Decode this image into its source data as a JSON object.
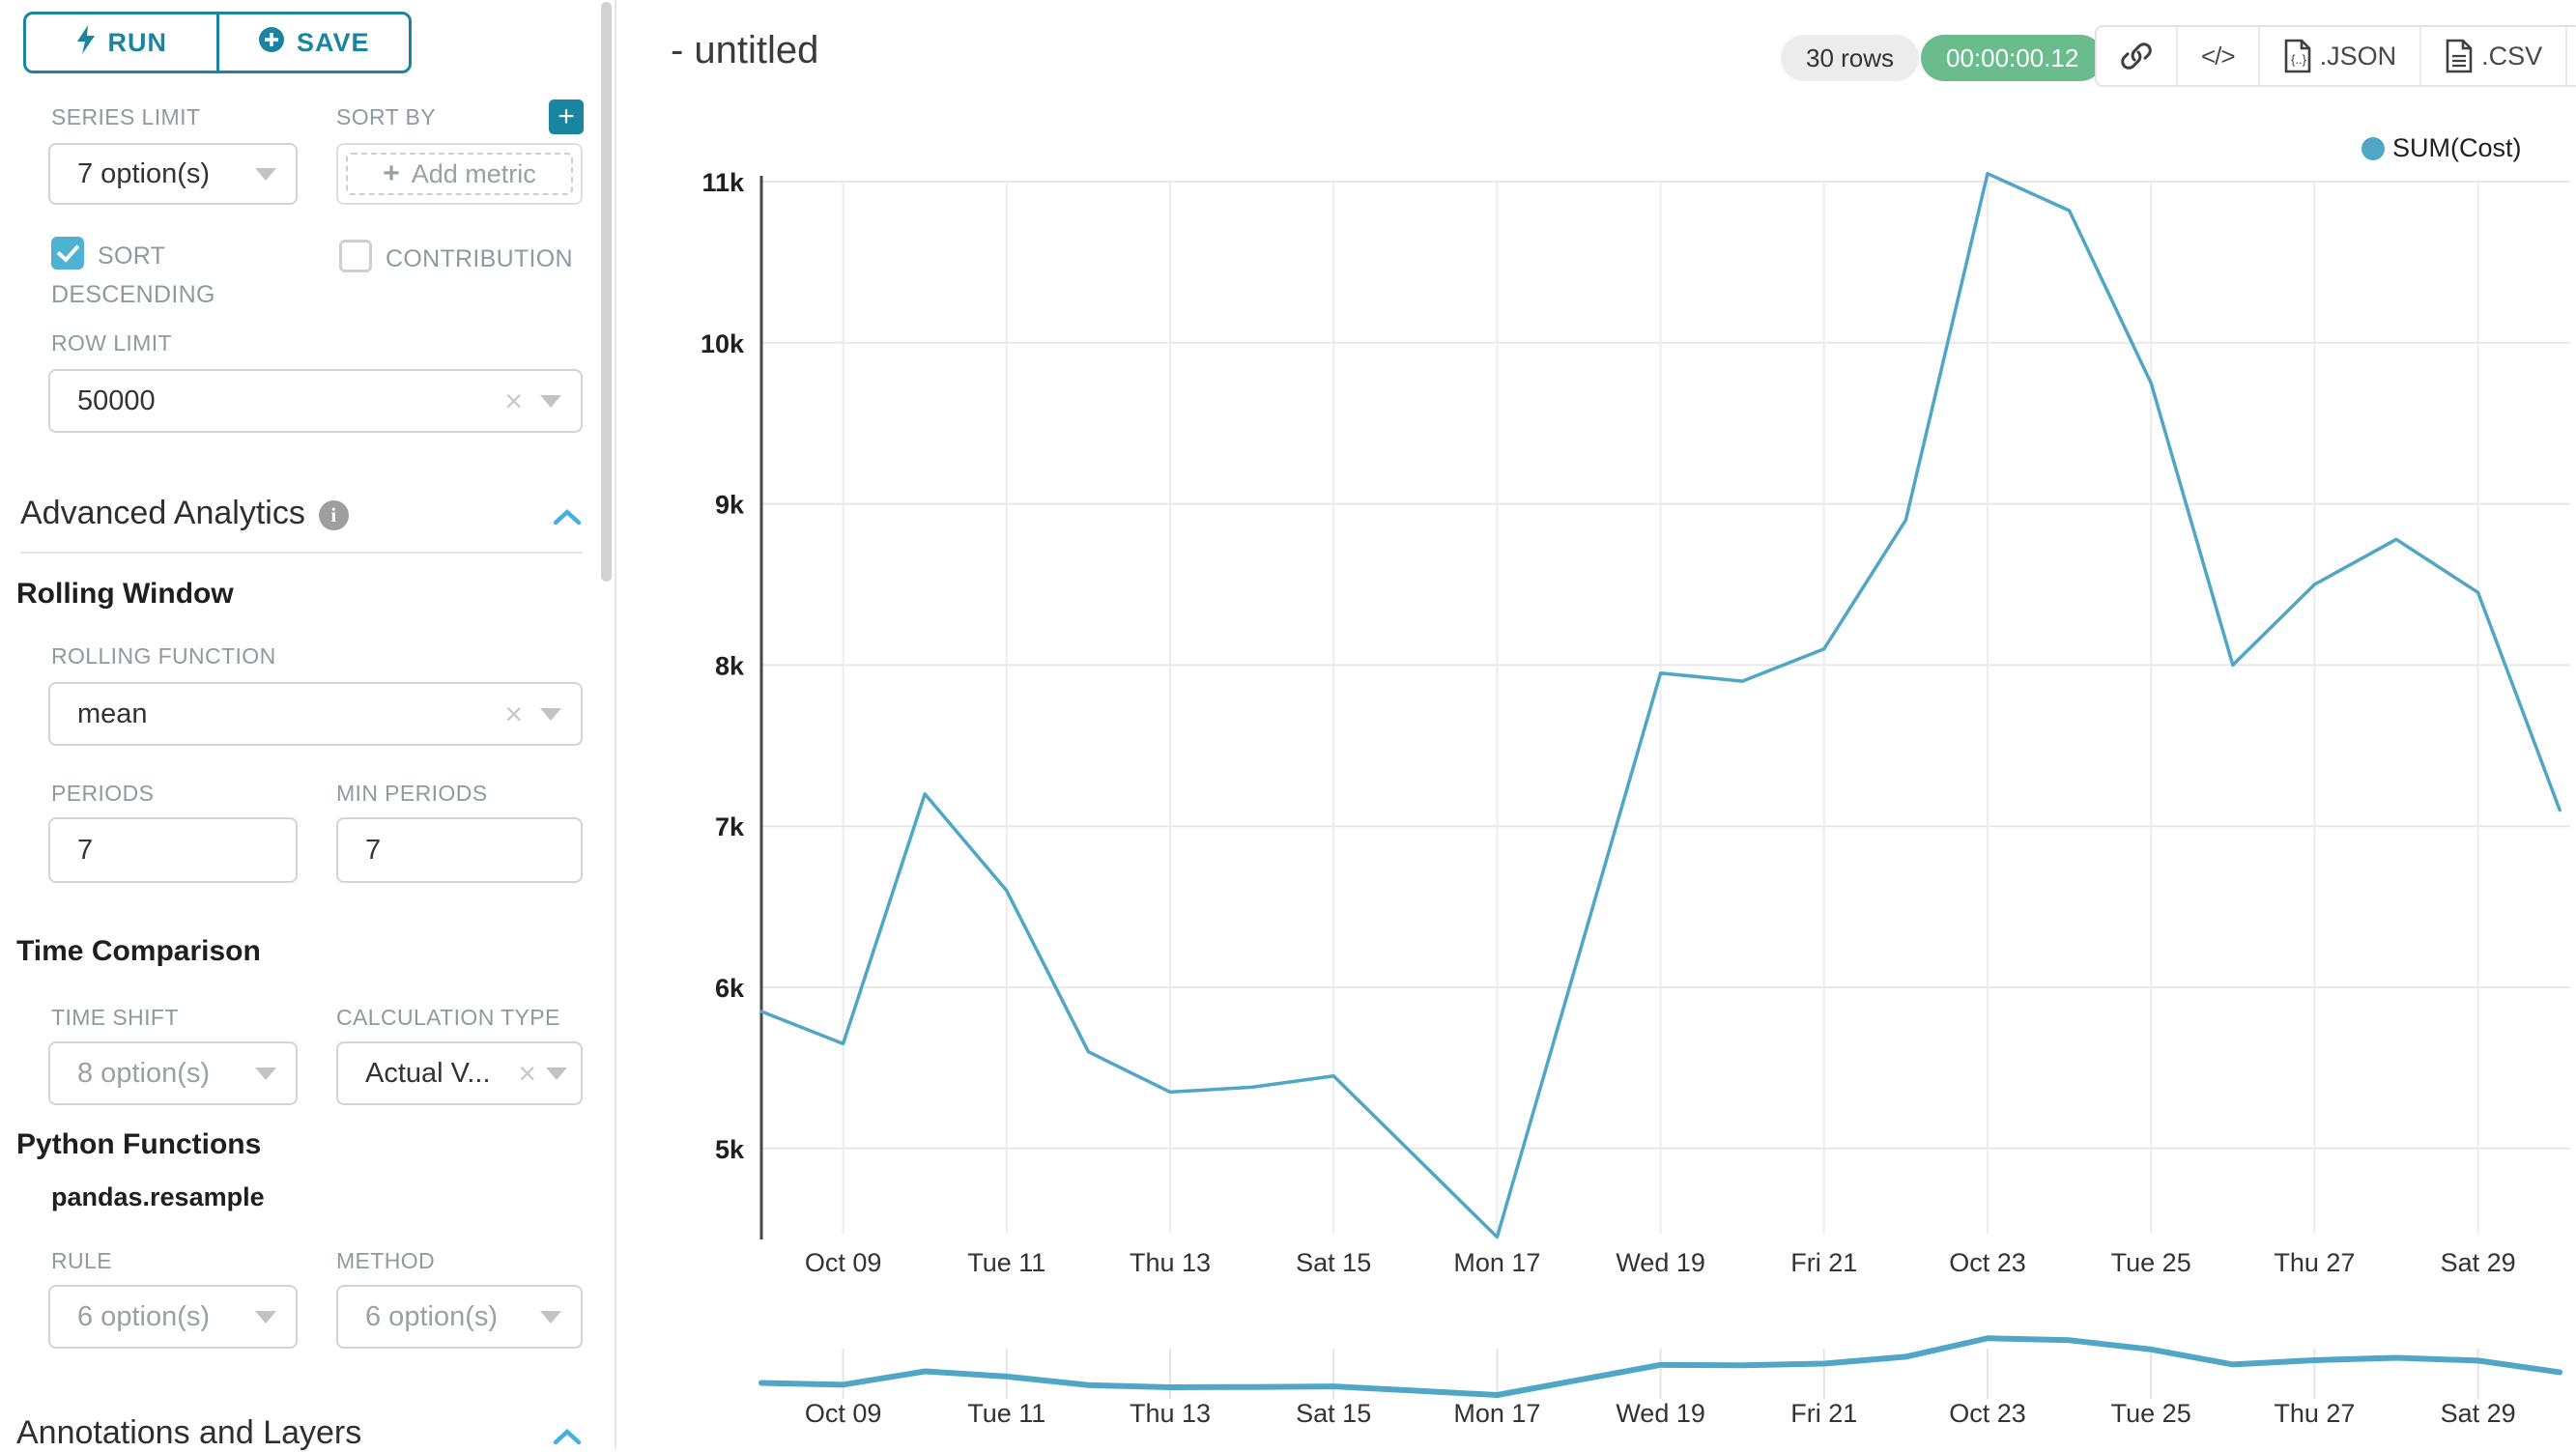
{
  "colors": {
    "accent": "#1a85a0",
    "checkbox": "#4fb2d3",
    "chevron": "#44b0e0",
    "line": "#4fa6c6",
    "green": "#6abc8d"
  },
  "sidebar": {
    "run_label": "RUN",
    "save_label": "SAVE",
    "series_limit": {
      "label": "SERIES LIMIT",
      "value": "7 option(s)"
    },
    "sort_by": {
      "label": "SORT BY",
      "add_metric_label": "Add metric"
    },
    "sort_descending": {
      "label": "SORT DESCENDING",
      "checked": true
    },
    "contribution": {
      "label": "CONTRIBUTION",
      "checked": false
    },
    "row_limit": {
      "label": "ROW LIMIT",
      "value": "50000"
    },
    "advanced_analytics": {
      "title": "Advanced Analytics"
    },
    "rolling_window": {
      "title": "Rolling Window",
      "rolling_function": {
        "label": "ROLLING FUNCTION",
        "value": "mean"
      },
      "periods": {
        "label": "PERIODS",
        "value": "7"
      },
      "min_periods": {
        "label": "MIN PERIODS",
        "value": "7"
      }
    },
    "time_comparison": {
      "title": "Time Comparison",
      "time_shift": {
        "label": "TIME SHIFT",
        "value": "8 option(s)"
      },
      "calculation_type": {
        "label": "CALCULATION TYPE",
        "value": "Actual V..."
      }
    },
    "python_functions": {
      "title": "Python Functions",
      "subtitle": "pandas.resample",
      "rule": {
        "label": "RULE",
        "value": "6 option(s)"
      },
      "method": {
        "label": "METHOD",
        "value": "6 option(s)"
      }
    },
    "annotations": {
      "title": "Annotations and Layers"
    }
  },
  "header": {
    "title": "- untitled",
    "rows_badge": "30 rows",
    "timer_badge": "00:00:00.12",
    "json_label": ".JSON",
    "csv_label": ".CSV"
  },
  "chart_data": {
    "type": "line",
    "title": "- untitled",
    "legend_position": "top-right",
    "grid": true,
    "x_tick_labels": [
      "Oct 09",
      "Tue 11",
      "Thu 13",
      "Sat 15",
      "Mon 17",
      "Wed 19",
      "Fri 21",
      "Oct 23",
      "Tue 25",
      "Thu 27",
      "Sat 29"
    ],
    "first_tick_point_index": 1,
    "points_per_tick": 2,
    "ylim": [
      4.4,
      11.2
    ],
    "y_ticks": [
      {
        "value": 5,
        "label": "5k"
      },
      {
        "value": 6,
        "label": "6k"
      },
      {
        "value": 7,
        "label": "7k"
      },
      {
        "value": 8,
        "label": "8k"
      },
      {
        "value": 9,
        "label": "9k"
      },
      {
        "value": 10,
        "label": "10k"
      },
      {
        "value": 11,
        "label": "11k"
      }
    ],
    "series": [
      {
        "name": "SUM(Cost)",
        "color": "#4fa6c6",
        "values": [
          5.85,
          5.65,
          7.2,
          6.6,
          5.6,
          5.35,
          5.38,
          5.45,
          4.95,
          4.45,
          6.2,
          7.95,
          7.9,
          8.1,
          8.9,
          11.05,
          10.82,
          9.75,
          8.0,
          8.5,
          8.78,
          8.45,
          7.1
        ]
      }
    ],
    "mini_preview_chart": true
  }
}
